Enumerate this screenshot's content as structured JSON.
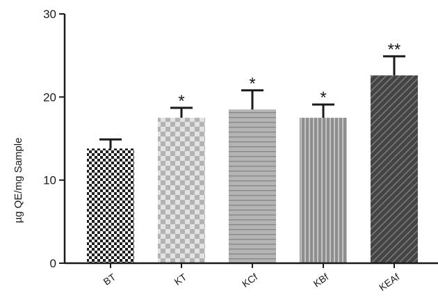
{
  "chart_data": {
    "type": "bar",
    "title": "",
    "xlabel": "",
    "ylabel": "µg QE/mg Sample",
    "ylim": [
      0,
      30
    ],
    "yticks": [
      0,
      10,
      20,
      30
    ],
    "grid": false,
    "categories": [
      "BT",
      "KT",
      "KCf",
      "KBf",
      "KEAf"
    ],
    "values": [
      13.8,
      17.5,
      18.5,
      17.5,
      22.6
    ],
    "errors": [
      1.1,
      1.2,
      2.3,
      1.6,
      2.3
    ],
    "significance": [
      "",
      "*",
      "*",
      "*",
      "**"
    ],
    "patterns": [
      "checker-fine",
      "checker-light",
      "horizontal-stripes",
      "vertical-stripes",
      "diagonal-stripes"
    ],
    "colors": {
      "bar_dark": "#2b2b2b",
      "bar_mid": "#8a8a8a",
      "bar_light": "#b8b8b8",
      "axis": "#1a1a1a"
    }
  }
}
